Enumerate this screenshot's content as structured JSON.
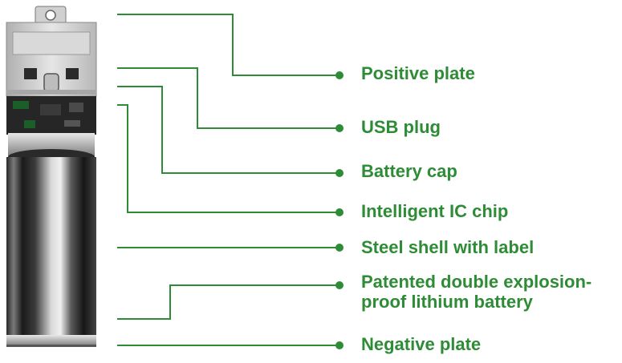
{
  "labels": {
    "positive_plate": "Positive plate",
    "usb_plug": "USB plug",
    "battery_cap": "Battery cap",
    "ic_chip": "Intelligent IC chip",
    "steel_shell": "Steel shell with label",
    "patented_line1": "Patented double explosion-",
    "patented_line2": "proof  lithium battery",
    "negative_plate": "Negative plate"
  },
  "colors": {
    "accent_green": "#2e8b36",
    "battery_dark": "#1c1c1c",
    "battery_highlight": "#d6d6d6",
    "plug_gray": "#cfcfcf"
  }
}
